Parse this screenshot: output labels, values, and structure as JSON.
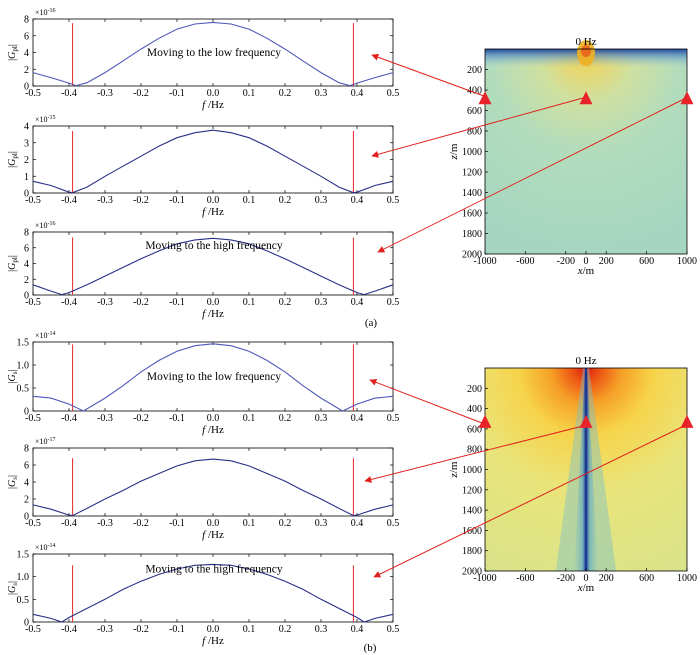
{
  "captions": {
    "a": "(a)",
    "b": "(b)"
  },
  "chart_data": [
    {
      "type": "line",
      "panel": "a1",
      "ylabel": "|G_pl|",
      "xlabel": "f /Hz",
      "y_multiplier": "×10^-16",
      "xlim": [
        -0.5,
        0.5
      ],
      "ylim": [
        0,
        8
      ],
      "xticks": [
        -0.5,
        -0.4,
        -0.3,
        -0.2,
        -0.1,
        0.0,
        0.1,
        0.2,
        0.3,
        0.4,
        0.5
      ],
      "xtick_labels": [
        "-0.5",
        "-0.4",
        "-0.3",
        "-0.2",
        "-0.1",
        "0.0",
        "0.1",
        "0.2",
        "0.3",
        "0.4",
        "0.5"
      ],
      "yticks": [
        0,
        2,
        4,
        6,
        8
      ],
      "ytick_labels": [
        "0",
        "2",
        "4",
        "6",
        "8"
      ],
      "annotation": "Moving to the low frequency",
      "series": [
        {
          "color": "#5058b8",
          "x": [
            -0.5,
            -0.45,
            -0.4,
            -0.38,
            -0.35,
            -0.3,
            -0.25,
            -0.2,
            -0.15,
            -0.1,
            -0.05,
            0.0,
            0.05,
            0.1,
            0.15,
            0.2,
            0.25,
            0.3,
            0.35,
            0.38,
            0.4,
            0.45,
            0.5
          ],
          "y": [
            1.6,
            1.0,
            0.35,
            0.05,
            0.4,
            1.6,
            3.0,
            4.4,
            5.7,
            6.8,
            7.4,
            7.6,
            7.4,
            6.8,
            5.7,
            4.4,
            3.0,
            1.6,
            0.4,
            0.05,
            0.35,
            1.0,
            1.6
          ]
        }
      ],
      "vlines": [
        {
          "x": -0.39,
          "y": 7.5,
          "color": "#e8242a"
        },
        {
          "x": 0.39,
          "y": 7.5,
          "color": "#e8242a"
        }
      ]
    },
    {
      "type": "line",
      "panel": "a2",
      "ylabel": "|G_pl|",
      "xlabel": "f /Hz",
      "y_multiplier": "×10^-15",
      "xlim": [
        -0.5,
        0.5
      ],
      "ylim": [
        0,
        4
      ],
      "xticks": [
        -0.5,
        -0.4,
        -0.3,
        -0.2,
        -0.1,
        0.0,
        0.1,
        0.2,
        0.3,
        0.4,
        0.5
      ],
      "xtick_labels": [
        "-0.5",
        "-0.4",
        "-0.3",
        "-0.2",
        "-0.1",
        "0.0",
        "0.1",
        "0.2",
        "0.3",
        "0.4",
        "0.5"
      ],
      "yticks": [
        0,
        1,
        2,
        3,
        4
      ],
      "ytick_labels": [
        "0",
        "1",
        "2",
        "3",
        "4"
      ],
      "annotation": "",
      "series": [
        {
          "color": "#2a3088",
          "x": [
            -0.5,
            -0.45,
            -0.4,
            -0.39,
            -0.35,
            -0.3,
            -0.25,
            -0.2,
            -0.15,
            -0.1,
            -0.05,
            0.0,
            0.05,
            0.1,
            0.15,
            0.2,
            0.25,
            0.3,
            0.35,
            0.39,
            0.4,
            0.45,
            0.5
          ],
          "y": [
            0.7,
            0.45,
            0.05,
            0.02,
            0.35,
            1.0,
            1.6,
            2.2,
            2.8,
            3.3,
            3.6,
            3.75,
            3.6,
            3.3,
            2.8,
            2.2,
            1.6,
            1.0,
            0.35,
            0.02,
            0.05,
            0.45,
            0.7
          ]
        }
      ],
      "vlines": [
        {
          "x": -0.39,
          "y": 3.7,
          "color": "#e8242a"
        },
        {
          "x": 0.39,
          "y": 3.7,
          "color": "#e8242a"
        }
      ]
    },
    {
      "type": "line",
      "panel": "a3",
      "ylabel": "|G_pl|",
      "xlabel": "f /Hz",
      "y_multiplier": "×10^-16",
      "xlim": [
        -0.5,
        0.5
      ],
      "ylim": [
        0,
        8
      ],
      "xticks": [
        -0.5,
        -0.4,
        -0.3,
        -0.2,
        -0.1,
        0.0,
        0.1,
        0.2,
        0.3,
        0.4,
        0.5
      ],
      "xtick_labels": [
        "-0.5",
        "-0.4",
        "-0.3",
        "-0.2",
        "-0.1",
        "0.0",
        "0.1",
        "0.2",
        "0.3",
        "0.4",
        "0.5"
      ],
      "yticks": [
        0,
        2,
        4,
        6,
        8
      ],
      "ytick_labels": [
        "0",
        "2",
        "4",
        "6",
        "8"
      ],
      "annotation": "Moving to the high frequency",
      "series": [
        {
          "color": "#2a3088",
          "x": [
            -0.5,
            -0.45,
            -0.42,
            -0.4,
            -0.35,
            -0.3,
            -0.25,
            -0.2,
            -0.15,
            -0.1,
            -0.05,
            0.0,
            0.05,
            0.1,
            0.15,
            0.2,
            0.25,
            0.3,
            0.35,
            0.4,
            0.42,
            0.45,
            0.5
          ],
          "y": [
            1.3,
            0.5,
            0.05,
            0.3,
            1.3,
            2.4,
            3.5,
            4.6,
            5.6,
            6.5,
            7.0,
            7.2,
            7.0,
            6.5,
            5.6,
            4.6,
            3.5,
            2.4,
            1.3,
            0.3,
            0.05,
            0.5,
            1.3
          ]
        }
      ],
      "vlines": [
        {
          "x": -0.39,
          "y": 7.3,
          "color": "#e8242a"
        },
        {
          "x": 0.39,
          "y": 7.3,
          "color": "#e8242a"
        }
      ]
    },
    {
      "type": "line",
      "panel": "b1",
      "ylabel": "|G_s|",
      "xlabel": "f /Hz",
      "y_multiplier": "×10^-14",
      "xlim": [
        -0.5,
        0.5
      ],
      "ylim": [
        0,
        1.5
      ],
      "xticks": [
        -0.5,
        -0.4,
        -0.3,
        -0.2,
        -0.1,
        0.0,
        0.1,
        0.2,
        0.3,
        0.4,
        0.5
      ],
      "xtick_labels": [
        "-0.5",
        "-0.4",
        "-0.3",
        "-0.2",
        "-0.1",
        "0.0",
        "0.1",
        "0.2",
        "0.3",
        "0.4",
        "0.5"
      ],
      "yticks": [
        0,
        0.5,
        1.0,
        1.5
      ],
      "ytick_labels": [
        "0",
        "0.5",
        "1.0",
        "1.5"
      ],
      "annotation": "Moving to the low frequency",
      "series": [
        {
          "color": "#5058b8",
          "x": [
            -0.5,
            -0.45,
            -0.4,
            -0.36,
            -0.3,
            -0.25,
            -0.2,
            -0.15,
            -0.1,
            -0.05,
            0.0,
            0.05,
            0.1,
            0.15,
            0.2,
            0.25,
            0.3,
            0.36,
            0.4,
            0.45,
            0.5
          ],
          "y": [
            0.32,
            0.28,
            0.15,
            0.0,
            0.28,
            0.55,
            0.85,
            1.1,
            1.3,
            1.42,
            1.46,
            1.42,
            1.3,
            1.1,
            0.85,
            0.55,
            0.28,
            0.0,
            0.15,
            0.28,
            0.32
          ]
        }
      ],
      "vlines": [
        {
          "x": -0.39,
          "y": 1.45,
          "color": "#e8242a"
        },
        {
          "x": 0.39,
          "y": 1.45,
          "color": "#e8242a"
        }
      ]
    },
    {
      "type": "line",
      "panel": "b2",
      "ylabel": "|G_s|",
      "xlabel": "f /Hz",
      "y_multiplier": "×10^-17",
      "xlim": [
        -0.5,
        0.5
      ],
      "ylim": [
        0,
        8
      ],
      "xticks": [
        -0.5,
        -0.4,
        -0.3,
        -0.2,
        -0.1,
        0.0,
        0.1,
        0.2,
        0.3,
        0.4,
        0.5
      ],
      "xtick_labels": [
        "-0.5",
        "-0.4",
        "-0.3",
        "-0.2",
        "-0.1",
        "0.0",
        "0.1",
        "0.2",
        "0.3",
        "0.4",
        "0.5"
      ],
      "yticks": [
        0,
        2,
        4,
        6,
        8
      ],
      "ytick_labels": [
        "0",
        "2",
        "4",
        "6",
        "8"
      ],
      "annotation": "",
      "series": [
        {
          "color": "#2a3088",
          "x": [
            -0.5,
            -0.45,
            -0.4,
            -0.39,
            -0.35,
            -0.3,
            -0.25,
            -0.2,
            -0.15,
            -0.1,
            -0.05,
            0.0,
            0.05,
            0.1,
            0.15,
            0.2,
            0.25,
            0.3,
            0.35,
            0.39,
            0.4,
            0.45,
            0.5
          ],
          "y": [
            1.3,
            0.8,
            0.1,
            0.05,
            0.9,
            2.0,
            3.0,
            4.1,
            5.0,
            5.9,
            6.5,
            6.7,
            6.5,
            5.9,
            5.0,
            4.1,
            3.0,
            2.0,
            0.9,
            0.05,
            0.1,
            0.8,
            1.3
          ]
        }
      ],
      "vlines": [
        {
          "x": -0.39,
          "y": 6.8,
          "color": "#e8242a"
        },
        {
          "x": 0.39,
          "y": 6.8,
          "color": "#e8242a"
        }
      ]
    },
    {
      "type": "line",
      "panel": "b3",
      "ylabel": "|G_s|",
      "xlabel": "f /Hz",
      "y_multiplier": "×10^-14",
      "xlim": [
        -0.5,
        0.5
      ],
      "ylim": [
        0,
        1.5
      ],
      "xticks": [
        -0.5,
        -0.4,
        -0.3,
        -0.2,
        -0.1,
        0.0,
        0.1,
        0.2,
        0.3,
        0.4,
        0.5
      ],
      "xtick_labels": [
        "-0.5",
        "-0.4",
        "-0.3",
        "-0.2",
        "-0.1",
        "0.0",
        "0.1",
        "0.2",
        "0.3",
        "0.4",
        "0.5"
      ],
      "yticks": [
        0,
        0.5,
        1.0,
        1.5
      ],
      "ytick_labels": [
        "0",
        "0.5",
        "1.0",
        "1.5"
      ],
      "annotation": "Moving to the high frequency",
      "series": [
        {
          "color": "#2a3088",
          "x": [
            -0.5,
            -0.45,
            -0.42,
            -0.4,
            -0.35,
            -0.3,
            -0.25,
            -0.2,
            -0.15,
            -0.1,
            -0.05,
            0.0,
            0.05,
            0.1,
            0.15,
            0.2,
            0.25,
            0.3,
            0.35,
            0.4,
            0.42,
            0.45,
            0.5
          ],
          "y": [
            0.17,
            0.08,
            0.0,
            0.1,
            0.3,
            0.5,
            0.72,
            0.9,
            1.05,
            1.17,
            1.25,
            1.27,
            1.25,
            1.17,
            1.05,
            0.9,
            0.72,
            0.5,
            0.3,
            0.1,
            0.0,
            0.08,
            0.17
          ]
        }
      ],
      "vlines": [
        {
          "x": -0.39,
          "y": 1.25,
          "color": "#e8242a"
        },
        {
          "x": 0.39,
          "y": 1.25,
          "color": "#e8242a"
        }
      ]
    },
    {
      "type": "heatmap",
      "panel": "map-a",
      "title": "0 Hz",
      "xlabel": "x/m",
      "ylabel": "z/m",
      "xlim": [
        -1000,
        1000
      ],
      "ylim": [
        0,
        2000
      ],
      "xtick_labels": [
        "-1000",
        "-600",
        "-200",
        "0",
        "200",
        "600",
        "1000"
      ],
      "ytick_labels": [
        "200",
        "400",
        "600",
        "800",
        "1000",
        "1200",
        "1400",
        "1600",
        "1800",
        "2000"
      ],
      "markers": [
        {
          "x": -1000,
          "z": 500,
          "target_panel": "a1"
        },
        {
          "x": 0,
          "z": 500,
          "target_panel": "a2"
        },
        {
          "x": 1000,
          "z": 500,
          "target_panel": "a3"
        }
      ],
      "marker_color": "#e8242a"
    },
    {
      "type": "heatmap",
      "panel": "map-b",
      "title": "0 Hz",
      "xlabel": "x/m",
      "ylabel": "z/m",
      "xlim": [
        -1000,
        1000
      ],
      "ylim": [
        0,
        2000
      ],
      "xtick_labels": [
        "-1000",
        "-600",
        "-200",
        "0",
        "200",
        "600",
        "1000"
      ],
      "ytick_labels": [
        "200",
        "400",
        "600",
        "800",
        "1000",
        "1200",
        "1400",
        "1600",
        "1800",
        "2000"
      ],
      "markers": [
        {
          "x": -1000,
          "z": 550,
          "target_panel": "b1"
        },
        {
          "x": 0,
          "z": 550,
          "target_panel": "b2"
        },
        {
          "x": 1000,
          "z": 550,
          "target_panel": "b3"
        }
      ],
      "marker_color": "#e8242a"
    }
  ]
}
